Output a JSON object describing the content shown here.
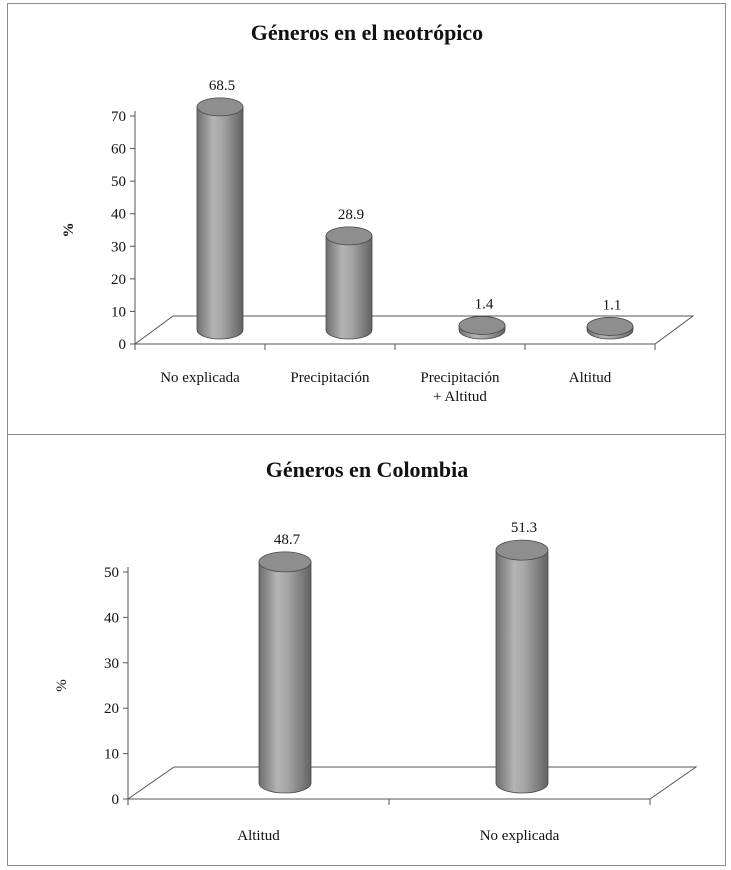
{
  "chart_data": [
    {
      "type": "bar",
      "title": "Géneros en el neotrópico",
      "ylabel": "%",
      "ylabel_bold": true,
      "categories": [
        [
          "No explicada"
        ],
        [
          "Precipitación"
        ],
        [
          "Precipitación",
          "+ Altitud"
        ],
        [
          "Altitud"
        ]
      ],
      "values": [
        68.5,
        28.9,
        1.4,
        1.1
      ],
      "value_labels": [
        "68.5",
        "28.9",
        "1.4",
        "1.1"
      ],
      "yticks": [
        "0",
        "10",
        "20",
        "30",
        "40",
        "50",
        "60",
        "70"
      ],
      "ylim": [
        0,
        70
      ],
      "style": "3d-cylinder",
      "bar_color": "#8a8a8a"
    },
    {
      "type": "bar",
      "title": "Géneros en Colombia",
      "ylabel": "%",
      "ylabel_bold": false,
      "categories": [
        [
          "Altitud"
        ],
        [
          "No explicada"
        ]
      ],
      "values": [
        48.7,
        51.3
      ],
      "value_labels": [
        "48.7",
        "51.3"
      ],
      "yticks": [
        "0",
        "10",
        "20",
        "30",
        "40",
        "50"
      ],
      "ylim": [
        0,
        50
      ],
      "style": "3d-cylinder",
      "bar_color": "#8a8a8a"
    }
  ]
}
